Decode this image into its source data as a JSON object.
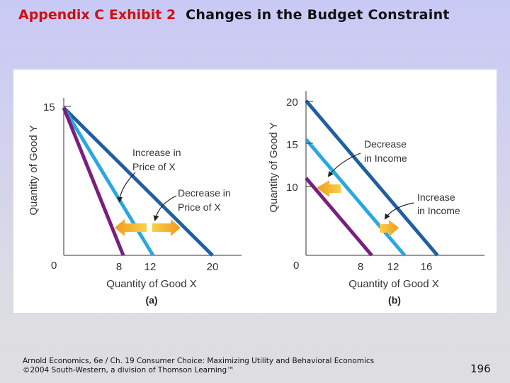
{
  "header": {
    "exhibit": "Appendix C Exhibit 2",
    "title": "Changes in the Budget Constraint"
  },
  "footer": {
    "line1": "Arnold Economics, 6e / Ch. 19 Consumer Choice: Maximizing Utility and Behavioral Economics",
    "line2": "©2004 South-Western, a division of Thomson Learning™"
  },
  "page_number": "196",
  "colors": {
    "line_dark": "#1f5fa3",
    "line_light": "#2aa7e0",
    "line_purple": "#7a1f7e",
    "arrow_orange": "#f29a1a",
    "arrow_yellow": "#f7d04a",
    "exhibit_red": "#cc1111"
  },
  "chart_data": [
    {
      "type": "line",
      "panel_label": "(a)",
      "xlabel": "Quantity of Good X",
      "ylabel": "Quantity of Good Y",
      "x_ticks": [
        "0",
        "8",
        "12",
        "20"
      ],
      "y_ticks": [
        "15"
      ],
      "xlim": [
        0,
        22
      ],
      "ylim": [
        0,
        18
      ],
      "series": [
        {
          "role": "original",
          "x": [
            0,
            12
          ],
          "y": [
            15,
            0
          ],
          "color": "#2aa7e0"
        },
        {
          "role": "after price decrease",
          "x": [
            0,
            20
          ],
          "y": [
            15,
            0
          ],
          "color": "#1f5fa3"
        },
        {
          "role": "after price increase",
          "x": [
            0,
            8
          ],
          "y": [
            15,
            0
          ],
          "color": "#7a1f7e"
        }
      ],
      "annotations": [
        {
          "text_lines": [
            "Increase in",
            "Price of X"
          ]
        },
        {
          "text_lines": [
            "Decrease in",
            "Price of X"
          ]
        }
      ]
    },
    {
      "type": "line",
      "panel_label": "(b)",
      "xlabel": "Quantity of Good X",
      "ylabel": "Quantity of Good Y",
      "x_ticks": [
        "0",
        "8",
        "12",
        "16"
      ],
      "y_ticks": [
        "20",
        "15",
        "10"
      ],
      "xlim": [
        0,
        20
      ],
      "ylim": [
        0,
        23.5
      ],
      "series": [
        {
          "role": "original",
          "x": [
            0,
            12
          ],
          "y": [
            15,
            0
          ],
          "color": "#2aa7e0"
        },
        {
          "role": "after income increase",
          "x": [
            0,
            16
          ],
          "y": [
            20,
            0
          ],
          "color": "#1f5fa3"
        },
        {
          "role": "after income decrease",
          "x": [
            0,
            8
          ],
          "y": [
            10,
            0
          ],
          "color": "#7a1f7e"
        }
      ],
      "annotations": [
        {
          "text_lines": [
            "Decrease",
            "in Income"
          ]
        },
        {
          "text_lines": [
            "Increase",
            "in Income"
          ]
        }
      ]
    }
  ]
}
